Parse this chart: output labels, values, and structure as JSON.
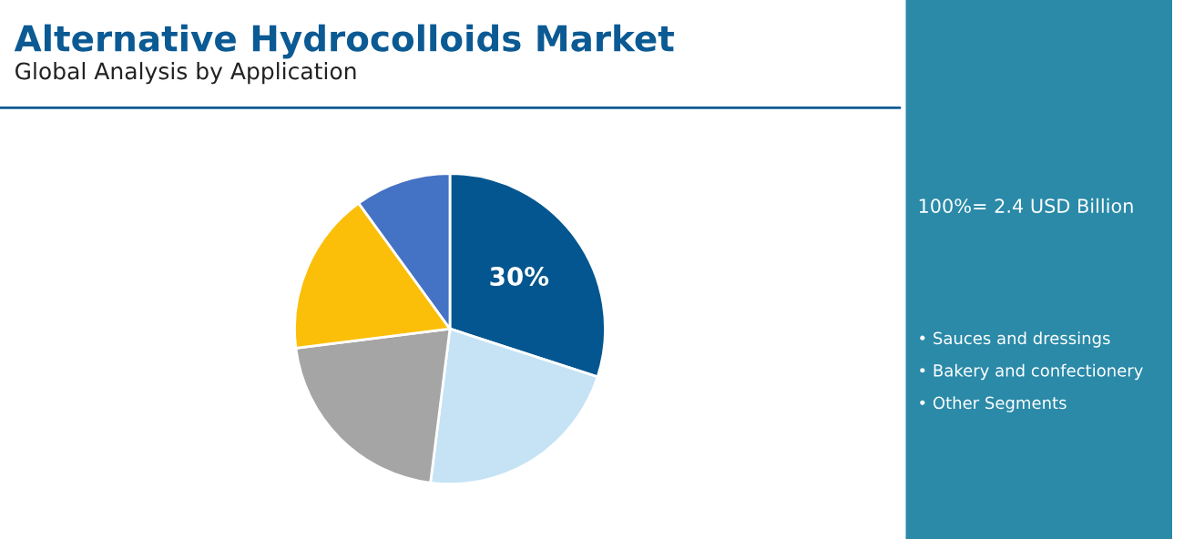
{
  "chart_data": {
    "type": "pie",
    "title": "Alternative Hydrocolloids Market",
    "subtitle": "Global Analysis by Application",
    "categories": [
      null,
      null,
      null,
      null,
      null
    ],
    "values": [
      30,
      22,
      21,
      17,
      10
    ],
    "colors": [
      "#03568f",
      "#c5e3f5",
      "#a5a5a5",
      "#fbbf0a",
      "#4472c4"
    ],
    "value_labels": [
      "30%",
      null,
      null,
      null,
      null
    ],
    "annotations": [
      "100%= 2.4 USD Billion",
      "• Sauces and dressings",
      "• Bakery and confectionery",
      "• Other Segments"
    ]
  }
}
